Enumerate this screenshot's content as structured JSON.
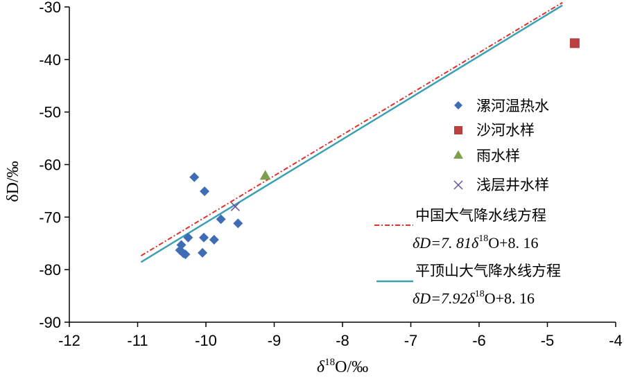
{
  "chart_data": {
    "type": "scatter",
    "xlabel_prefix": "δ",
    "xlabel_sup": "18",
    "xlabel_suffix": "O/‰",
    "ylabel": "δD/‰",
    "xlim": [
      -12,
      -4
    ],
    "ylim": [
      -90,
      -30
    ],
    "xticks": [
      -12,
      -11,
      -10,
      -9,
      -8,
      -7,
      -6,
      -5,
      -4
    ],
    "yticks": [
      -90,
      -80,
      -70,
      -60,
      -50,
      -40,
      -30
    ],
    "grid": false,
    "legend_position": "right",
    "series": [
      {
        "name": "漯河温热水",
        "marker": "diamond",
        "color": "#3e6db5",
        "points": [
          [
            -10.17,
            -62.4
          ],
          [
            -10.02,
            -65.1
          ],
          [
            -9.78,
            -70.4
          ],
          [
            -9.53,
            -71.2
          ],
          [
            -10.26,
            -73.9
          ],
          [
            -10.03,
            -73.9
          ],
          [
            -9.88,
            -74.3
          ],
          [
            -10.36,
            -75.3
          ],
          [
            -10.38,
            -76.3
          ],
          [
            -10.33,
            -76.9
          ],
          [
            -10.3,
            -77.1
          ],
          [
            -10.05,
            -76.8
          ]
        ]
      },
      {
        "name": "沙河水样",
        "marker": "square",
        "color": "#b84040",
        "points": [
          [
            -4.6,
            -36.9
          ]
        ]
      },
      {
        "name": "雨水样",
        "marker": "triangle",
        "color": "#7f9f4c",
        "points": [
          [
            -9.13,
            -62.1
          ]
        ]
      },
      {
        "name": "浅层井水样",
        "marker": "x",
        "color": "#6a4f96",
        "points": [
          [
            -9.57,
            -68.0
          ]
        ]
      }
    ],
    "lines": [
      {
        "name": "中国大气降水线方程",
        "eq_prefix": "δD=7. 81δ",
        "eq_sup": "18",
        "eq_suffix": "O+8. 16",
        "color": "#e0302a",
        "style": "dashdot",
        "slope": 7.81,
        "intercept": 8.16,
        "x_range": [
          -10.95,
          -4.78
        ]
      },
      {
        "name": "平顶山大气降水线方程",
        "eq_prefix": "δD=7.92δ",
        "eq_sup": "18",
        "eq_suffix": "O+8. 16",
        "color": "#3aa0b3",
        "style": "solid",
        "slope": 7.92,
        "intercept": 8.16,
        "x_range": [
          -10.95,
          -4.78
        ]
      }
    ]
  }
}
